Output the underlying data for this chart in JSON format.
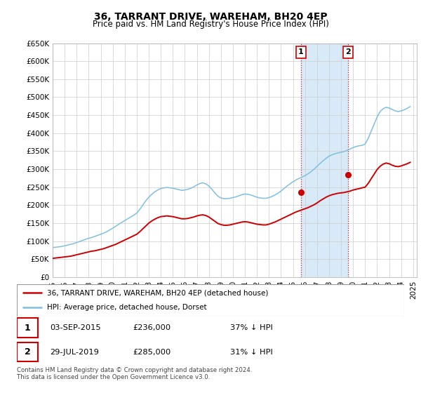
{
  "title": "36, TARRANT DRIVE, WAREHAM, BH20 4EP",
  "subtitle": "Price paid vs. HM Land Registry's House Price Index (HPI)",
  "ylim": [
    0,
    650000
  ],
  "yticks": [
    0,
    50000,
    100000,
    150000,
    200000,
    250000,
    300000,
    350000,
    400000,
    450000,
    500000,
    550000,
    600000,
    650000
  ],
  "ytick_labels": [
    "£0",
    "£50K",
    "£100K",
    "£150K",
    "£200K",
    "£250K",
    "£300K",
    "£350K",
    "£400K",
    "£450K",
    "£500K",
    "£550K",
    "£600K",
    "£650K"
  ],
  "hpi_color": "#7fbfdf",
  "property_color": "#cc0000",
  "shaded_region_color": "#d8eaf7",
  "legend_property": "36, TARRANT DRIVE, WAREHAM, BH20 4EP (detached house)",
  "legend_hpi": "HPI: Average price, detached house, Dorset",
  "sale1_date": "03-SEP-2015",
  "sale1_price": "£236,000",
  "sale1_hpi": "37% ↓ HPI",
  "sale1_year": 2015.67,
  "sale1_value": 236000,
  "sale2_date": "29-JUL-2019",
  "sale2_price": "£285,000",
  "sale2_hpi": "31% ↓ HPI",
  "sale2_year": 2019.58,
  "sale2_value": 285000,
  "footnote": "Contains HM Land Registry data © Crown copyright and database right 2024.\nThis data is licensed under the Open Government Licence v3.0.",
  "hpi_years": [
    1995.0,
    1995.25,
    1995.5,
    1995.75,
    1996.0,
    1996.25,
    1996.5,
    1996.75,
    1997.0,
    1997.25,
    1997.5,
    1997.75,
    1998.0,
    1998.25,
    1998.5,
    1998.75,
    1999.0,
    1999.25,
    1999.5,
    1999.75,
    2000.0,
    2000.25,
    2000.5,
    2000.75,
    2001.0,
    2001.25,
    2001.5,
    2001.75,
    2002.0,
    2002.25,
    2002.5,
    2002.75,
    2003.0,
    2003.25,
    2003.5,
    2003.75,
    2004.0,
    2004.25,
    2004.5,
    2004.75,
    2005.0,
    2005.25,
    2005.5,
    2005.75,
    2006.0,
    2006.25,
    2006.5,
    2006.75,
    2007.0,
    2007.25,
    2007.5,
    2007.75,
    2008.0,
    2008.25,
    2008.5,
    2008.75,
    2009.0,
    2009.25,
    2009.5,
    2009.75,
    2010.0,
    2010.25,
    2010.5,
    2010.75,
    2011.0,
    2011.25,
    2011.5,
    2011.75,
    2012.0,
    2012.25,
    2012.5,
    2012.75,
    2013.0,
    2013.25,
    2013.5,
    2013.75,
    2014.0,
    2014.25,
    2014.5,
    2014.75,
    2015.0,
    2015.25,
    2015.5,
    2015.75,
    2016.0,
    2016.25,
    2016.5,
    2016.75,
    2017.0,
    2017.25,
    2017.5,
    2017.75,
    2018.0,
    2018.25,
    2018.5,
    2018.75,
    2019.0,
    2019.25,
    2019.5,
    2019.75,
    2020.0,
    2020.25,
    2020.5,
    2020.75,
    2021.0,
    2021.25,
    2021.5,
    2021.75,
    2022.0,
    2022.25,
    2022.5,
    2022.75,
    2023.0,
    2023.25,
    2023.5,
    2023.75,
    2024.0,
    2024.25,
    2024.5,
    2024.75
  ],
  "hpi_values": [
    82000,
    83000,
    84000,
    85000,
    87000,
    89000,
    91000,
    93000,
    96000,
    99000,
    102000,
    105000,
    108000,
    110000,
    113000,
    116000,
    119000,
    122000,
    126000,
    131000,
    136000,
    141000,
    147000,
    152000,
    157000,
    162000,
    167000,
    172000,
    178000,
    188000,
    200000,
    212000,
    222000,
    230000,
    237000,
    242000,
    246000,
    248000,
    249000,
    248000,
    247000,
    245000,
    243000,
    241000,
    242000,
    244000,
    247000,
    251000,
    256000,
    260000,
    262000,
    259000,
    253000,
    244000,
    234000,
    225000,
    220000,
    218000,
    218000,
    219000,
    221000,
    223000,
    226000,
    229000,
    231000,
    230000,
    228000,
    225000,
    222000,
    220000,
    219000,
    219000,
    221000,
    224000,
    228000,
    233000,
    239000,
    246000,
    253000,
    259000,
    265000,
    270000,
    274000,
    278000,
    282000,
    287000,
    293000,
    300000,
    308000,
    316000,
    323000,
    330000,
    336000,
    340000,
    343000,
    345000,
    347000,
    349000,
    352000,
    356000,
    360000,
    363000,
    365000,
    366000,
    370000,
    385000,
    405000,
    425000,
    445000,
    460000,
    468000,
    472000,
    470000,
    466000,
    462000,
    460000,
    462000,
    465000,
    469000,
    474000
  ],
  "prop_years": [
    1995.0,
    1995.25,
    1995.5,
    1995.75,
    1996.0,
    1996.25,
    1996.5,
    1996.75,
    1997.0,
    1997.25,
    1997.5,
    1997.75,
    1998.0,
    1998.25,
    1998.5,
    1998.75,
    1999.0,
    1999.25,
    1999.5,
    1999.75,
    2000.0,
    2000.25,
    2000.5,
    2000.75,
    2001.0,
    2001.25,
    2001.5,
    2001.75,
    2002.0,
    2002.25,
    2002.5,
    2002.75,
    2003.0,
    2003.25,
    2003.5,
    2003.75,
    2004.0,
    2004.25,
    2004.5,
    2004.75,
    2005.0,
    2005.25,
    2005.5,
    2005.75,
    2006.0,
    2006.25,
    2006.5,
    2006.75,
    2007.0,
    2007.25,
    2007.5,
    2007.75,
    2008.0,
    2008.25,
    2008.5,
    2008.75,
    2009.0,
    2009.25,
    2009.5,
    2009.75,
    2010.0,
    2010.25,
    2010.5,
    2010.75,
    2011.0,
    2011.25,
    2011.5,
    2011.75,
    2012.0,
    2012.25,
    2012.5,
    2012.75,
    2013.0,
    2013.25,
    2013.5,
    2013.75,
    2014.0,
    2014.25,
    2014.5,
    2014.75,
    2015.0,
    2015.25,
    2015.5,
    2015.75,
    2016.0,
    2016.25,
    2016.5,
    2016.75,
    2017.0,
    2017.25,
    2017.5,
    2017.75,
    2018.0,
    2018.25,
    2018.5,
    2018.75,
    2019.0,
    2019.25,
    2019.5,
    2019.75,
    2020.0,
    2020.25,
    2020.5,
    2020.75,
    2021.0,
    2021.25,
    2021.5,
    2021.75,
    2022.0,
    2022.25,
    2022.5,
    2022.75,
    2023.0,
    2023.25,
    2023.5,
    2023.75,
    2024.0,
    2024.25,
    2024.5,
    2024.75
  ],
  "prop_values": [
    52000,
    53000,
    54000,
    55000,
    56000,
    57000,
    58000,
    60000,
    62000,
    64000,
    66000,
    68000,
    70000,
    72000,
    73000,
    75000,
    77000,
    79000,
    82000,
    85000,
    88000,
    91000,
    95000,
    99000,
    103000,
    107000,
    111000,
    115000,
    119000,
    126000,
    134000,
    142000,
    150000,
    156000,
    161000,
    165000,
    168000,
    169000,
    170000,
    169000,
    168000,
    166000,
    164000,
    162000,
    162000,
    163000,
    165000,
    167000,
    170000,
    172000,
    173000,
    171000,
    167000,
    161000,
    155000,
    149000,
    146000,
    144000,
    144000,
    145000,
    147000,
    149000,
    151000,
    153000,
    154000,
    153000,
    151000,
    149000,
    147000,
    146000,
    145000,
    145000,
    147000,
    150000,
    153000,
    157000,
    161000,
    165000,
    169000,
    173000,
    177000,
    181000,
    184000,
    187000,
    190000,
    193000,
    197000,
    201000,
    206000,
    212000,
    217000,
    222000,
    226000,
    229000,
    231000,
    233000,
    234000,
    235000,
    237000,
    239000,
    242000,
    244000,
    246000,
    248000,
    250000,
    260000,
    273000,
    286000,
    299000,
    308000,
    314000,
    317000,
    315000,
    311000,
    308000,
    307000,
    309000,
    312000,
    315000,
    319000
  ],
  "xlim": [
    1995,
    2025.3
  ],
  "xtick_years": [
    1995,
    1996,
    1997,
    1998,
    1999,
    2000,
    2001,
    2002,
    2003,
    2004,
    2005,
    2006,
    2007,
    2008,
    2009,
    2010,
    2011,
    2012,
    2013,
    2014,
    2015,
    2016,
    2017,
    2018,
    2019,
    2020,
    2021,
    2022,
    2023,
    2024,
    2025
  ]
}
